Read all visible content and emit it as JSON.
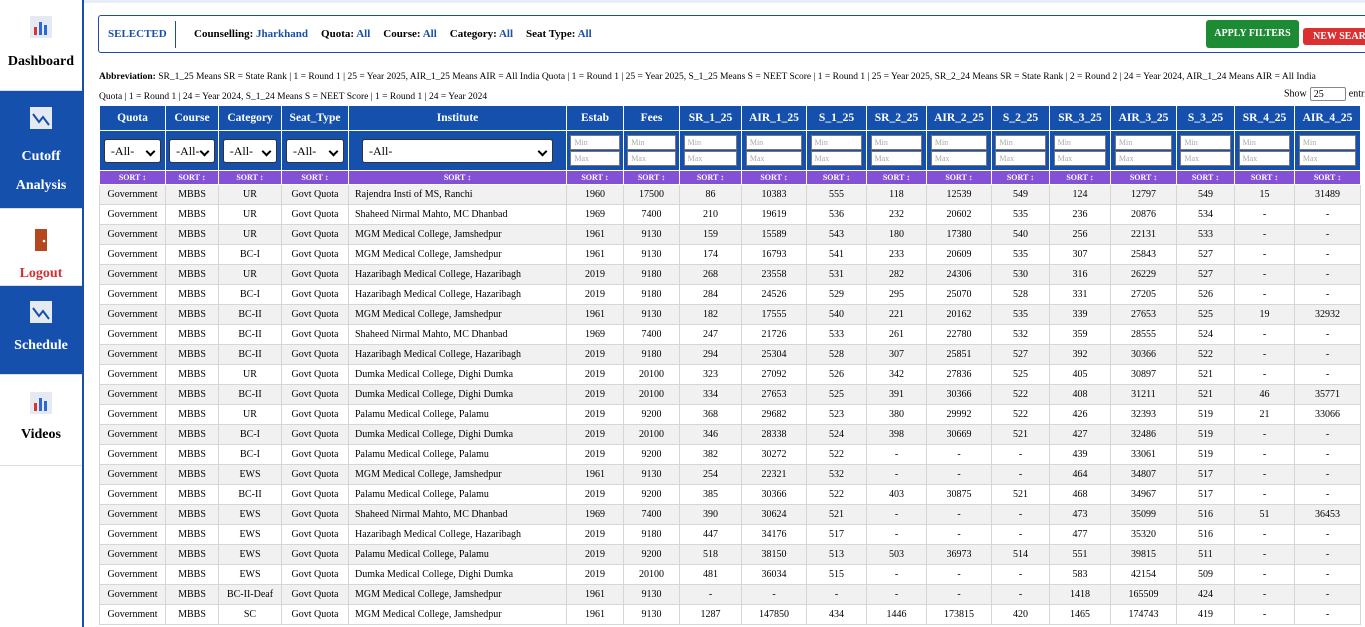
{
  "sidebar": [
    "Dashboard",
    "Cutoff Analysis",
    "Logout",
    "Schedule",
    "Videos"
  ],
  "filters": {
    "selected": "SELECTED",
    "items": [
      {
        "label": "Counselling:",
        "value": "Jharkhand"
      },
      {
        "label": "Quota:",
        "value": "All"
      },
      {
        "label": "Course:",
        "value": "All"
      },
      {
        "label": "Category:",
        "value": "All"
      },
      {
        "label": "Seat Type:",
        "value": "All"
      }
    ]
  },
  "buttons": {
    "apply": "APPLY FILTERS",
    "new_search": "NEW SEARCH"
  },
  "abbreviation": {
    "label": "Abbreviation:",
    "lines": [
      "SR_1_25 Means SR = State Rank | 1 = Round 1 | 25 = Year 2025, AIR_1_25 Means AIR = All India Quota | 1 = Round 1 | 25 = Year 2025, S_1_25 Means S = NEET Score | 1 = Round 1 | 25 = Year 2025, SR_2_24 Means SR = State Rank | 2 = Round 2 | 24 = Year 2024, AIR_1_24 Means AIR = All India",
      "Quota | 1 = Round 1 | 24 = Year 2024, S_1_24 Means S = NEET Score | 1 = Round 1 | 24 = Year 2024"
    ]
  },
  "show": {
    "label": "Show",
    "value": "25",
    "suffix": "entries"
  },
  "table": {
    "columns": [
      "Quota",
      "Course",
      "Category",
      "Seat_Type",
      "Institute",
      "Estab",
      "Fees",
      "SR_1_25",
      "AIR_1_25",
      "S_1_25",
      "SR_2_25",
      "AIR_2_25",
      "S_2_25",
      "SR_3_25",
      "AIR_3_25",
      "S_3_25",
      "SR_4_25",
      "AIR_4_25"
    ],
    "all_option": "-All-",
    "min": "Min",
    "max": "Max",
    "sort": "SORT",
    "rows": [
      [
        "Government",
        "MBBS",
        "UR",
        "Govt Quota",
        "Rajendra Insti of MS, Ranchi",
        1960,
        17500,
        86,
        10383,
        555,
        118,
        12539,
        549,
        124,
        12797,
        549,
        15,
        31489
      ],
      [
        "Government",
        "MBBS",
        "UR",
        "Govt Quota",
        "Shaheed Nirmal Mahto, MC Dhanbad",
        1969,
        7400,
        210,
        19619,
        536,
        232,
        20602,
        535,
        236,
        20876,
        534,
        "-",
        "-"
      ],
      [
        "Government",
        "MBBS",
        "UR",
        "Govt Quota",
        "MGM Medical College, Jamshedpur",
        1961,
        9130,
        159,
        15589,
        543,
        180,
        17380,
        540,
        256,
        22131,
        533,
        "-",
        "-"
      ],
      [
        "Government",
        "MBBS",
        "BC-I",
        "Govt Quota",
        "MGM Medical College, Jamshedpur",
        1961,
        9130,
        174,
        16793,
        541,
        233,
        20609,
        535,
        307,
        25843,
        527,
        "-",
        "-"
      ],
      [
        "Government",
        "MBBS",
        "UR",
        "Govt Quota",
        "Hazaribagh Medical College, Hazaribagh",
        2019,
        9180,
        268,
        23558,
        531,
        282,
        24306,
        530,
        316,
        26229,
        527,
        "-",
        "-"
      ],
      [
        "Government",
        "MBBS",
        "BC-I",
        "Govt Quota",
        "Hazaribagh Medical College, Hazaribagh",
        2019,
        9180,
        284,
        24526,
        529,
        295,
        25070,
        528,
        331,
        27205,
        526,
        "-",
        "-"
      ],
      [
        "Government",
        "MBBS",
        "BC-II",
        "Govt Quota",
        "MGM Medical College, Jamshedpur",
        1961,
        9130,
        182,
        17555,
        540,
        221,
        20162,
        535,
        339,
        27653,
        525,
        19,
        32932
      ],
      [
        "Government",
        "MBBS",
        "BC-II",
        "Govt Quota",
        "Shaheed Nirmal Mahto, MC Dhanbad",
        1969,
        7400,
        247,
        21726,
        533,
        261,
        22780,
        532,
        359,
        28555,
        524,
        "-",
        "-"
      ],
      [
        "Government",
        "MBBS",
        "BC-II",
        "Govt Quota",
        "Hazaribagh Medical College, Hazaribagh",
        2019,
        9180,
        294,
        25304,
        528,
        307,
        25851,
        527,
        392,
        30366,
        522,
        "-",
        "-"
      ],
      [
        "Government",
        "MBBS",
        "UR",
        "Govt Quota",
        "Dumka Medical College, Dighi Dumka",
        2019,
        20100,
        323,
        27092,
        526,
        342,
        27836,
        525,
        405,
        30897,
        521,
        "-",
        "-"
      ],
      [
        "Government",
        "MBBS",
        "BC-II",
        "Govt Quota",
        "Dumka Medical College, Dighi Dumka",
        2019,
        20100,
        334,
        27653,
        525,
        391,
        30366,
        522,
        408,
        31211,
        521,
        46,
        35771
      ],
      [
        "Government",
        "MBBS",
        "UR",
        "Govt Quota",
        "Palamu Medical College, Palamu",
        2019,
        9200,
        368,
        29682,
        523,
        380,
        29992,
        522,
        426,
        32393,
        519,
        21,
        33066
      ],
      [
        "Government",
        "MBBS",
        "BC-I",
        "Govt Quota",
        "Dumka Medical College, Dighi Dumka",
        2019,
        20100,
        346,
        28338,
        524,
        398,
        30669,
        521,
        427,
        32486,
        519,
        "-",
        "-"
      ],
      [
        "Government",
        "MBBS",
        "BC-I",
        "Govt Quota",
        "Palamu Medical College, Palamu",
        2019,
        9200,
        382,
        30272,
        522,
        "-",
        "-",
        "-",
        439,
        33061,
        519,
        "-",
        "-"
      ],
      [
        "Government",
        "MBBS",
        "EWS",
        "Govt Quota",
        "MGM Medical College, Jamshedpur",
        1961,
        9130,
        254,
        22321,
        532,
        "-",
        "-",
        "-",
        464,
        34807,
        517,
        "-",
        "-"
      ],
      [
        "Government",
        "MBBS",
        "BC-II",
        "Govt Quota",
        "Palamu Medical College, Palamu",
        2019,
        9200,
        385,
        30366,
        522,
        403,
        30875,
        521,
        468,
        34967,
        517,
        "-",
        "-"
      ],
      [
        "Government",
        "MBBS",
        "EWS",
        "Govt Quota",
        "Shaheed Nirmal Mahto, MC Dhanbad",
        1969,
        7400,
        390,
        30624,
        521,
        "-",
        "-",
        "-",
        473,
        35099,
        516,
        51,
        36453
      ],
      [
        "Government",
        "MBBS",
        "EWS",
        "Govt Quota",
        "Hazaribagh Medical College, Hazaribagh",
        2019,
        9180,
        447,
        34176,
        517,
        "-",
        "-",
        "-",
        477,
        35320,
        516,
        "-",
        "-"
      ],
      [
        "Government",
        "MBBS",
        "EWS",
        "Govt Quota",
        "Palamu Medical College, Palamu",
        2019,
        9200,
        518,
        38150,
        513,
        503,
        36973,
        514,
        551,
        39815,
        511,
        "-",
        "-"
      ],
      [
        "Government",
        "MBBS",
        "EWS",
        "Govt Quota",
        "Dumka Medical College, Dighi Dumka",
        2019,
        20100,
        481,
        36034,
        515,
        "-",
        "-",
        "-",
        583,
        42154,
        509,
        "-",
        "-"
      ],
      [
        "Government",
        "MBBS",
        "BC-II-Deaf",
        "Govt Quota",
        "MGM Medical College, Jamshedpur",
        1961,
        9130,
        "-",
        "-",
        "-",
        "-",
        "-",
        "-",
        1418,
        165509,
        424,
        "-",
        "-"
      ],
      [
        "Government",
        "MBBS",
        "SC",
        "Govt Quota",
        "MGM Medical College, Jamshedpur",
        1961,
        9130,
        1287,
        147850,
        434,
        1446,
        173815,
        420,
        1465,
        174743,
        419,
        "-",
        "-"
      ]
    ]
  }
}
